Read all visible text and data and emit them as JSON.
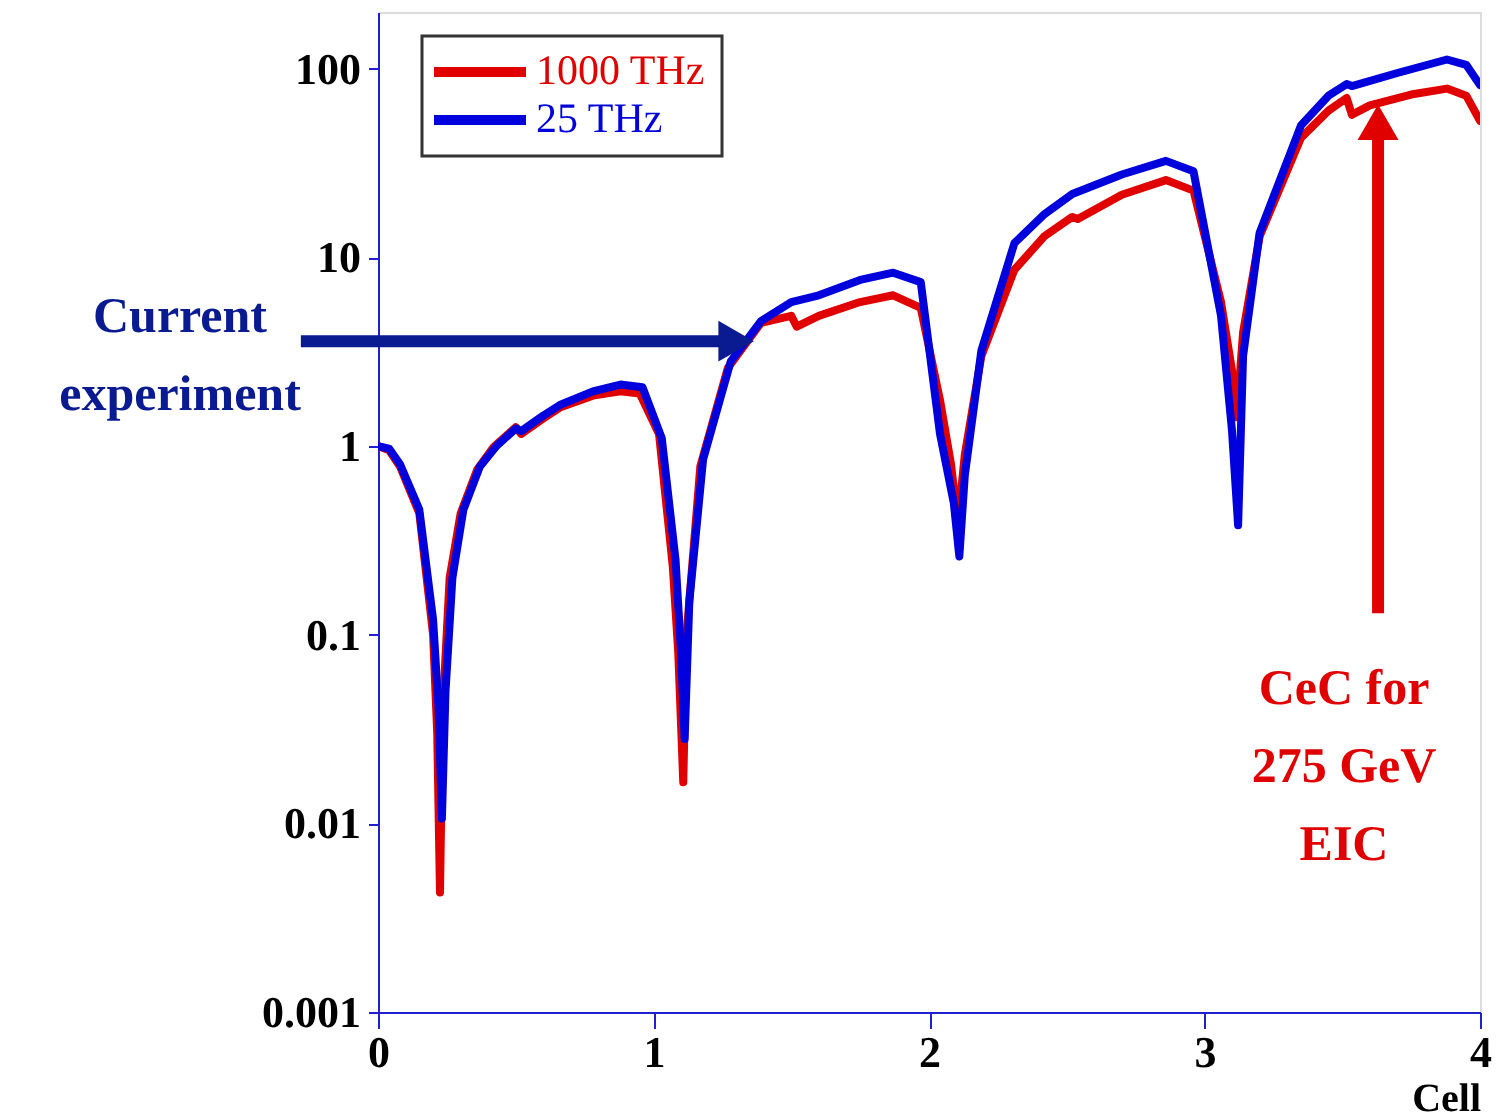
{
  "chart_data": {
    "type": "line",
    "xlabel": "Cell",
    "xlim": [
      0,
      4
    ],
    "xticks": [
      0,
      1,
      2,
      3,
      4
    ],
    "ylim": [
      0.001,
      200
    ],
    "yticks": [
      0.001,
      0.01,
      0.1,
      1,
      10,
      100
    ],
    "log": "y",
    "grid": false,
    "legend": "top left",
    "line_style": "solid",
    "marker": "none",
    "series": [
      {
        "name": "1000 THz",
        "color": "#e00000",
        "x": [
          0,
          0.04,
          0.08,
          0.15,
          0.2,
          0.215,
          0.225,
          0.235,
          0.26,
          0.3,
          0.36,
          0.42,
          0.5,
          0.52,
          0.6,
          0.66,
          0.78,
          0.88,
          0.95,
          1.02,
          1.07,
          1.09,
          1.108,
          1.12,
          1.17,
          1.27,
          1.39,
          1.5,
          1.52,
          1.6,
          1.75,
          1.87,
          1.97,
          2.04,
          2.08,
          2.105,
          2.13,
          2.19,
          2.31,
          2.42,
          2.52,
          2.54,
          2.7,
          2.86,
          2.96,
          3.06,
          3.1,
          3.117,
          3.14,
          3.2,
          3.35,
          3.45,
          3.516,
          3.535,
          3.6,
          3.75,
          3.88,
          3.95,
          4.0
        ],
        "values": [
          1,
          0.95,
          0.78,
          0.44,
          0.1,
          0.03,
          0.0043,
          0.04,
          0.2,
          0.44,
          0.75,
          0.99,
          1.26,
          1.16,
          1.4,
          1.6,
          1.85,
          1.95,
          1.9,
          1.16,
          0.23,
          0.08,
          0.0165,
          0.1,
          0.78,
          2.6,
          4.5,
          4.9,
          4.3,
          4.9,
          5.8,
          6.3,
          5.4,
          1.75,
          0.8,
          0.39,
          0.9,
          3.0,
          8.6,
          13,
          16.4,
          16,
          21.5,
          25.7,
          22.6,
          5.8,
          2.5,
          1.42,
          4,
          12.9,
          43,
          60,
          70,
          57,
          64,
          73,
          78.5,
          72,
          53
        ]
      },
      {
        "name": "25 THz",
        "color": "#0000dd",
        "x": [
          0,
          0.04,
          0.08,
          0.15,
          0.2,
          0.22,
          0.232,
          0.245,
          0.27,
          0.31,
          0.37,
          0.43,
          0.5,
          0.52,
          0.6,
          0.66,
          0.78,
          0.88,
          0.96,
          1.03,
          1.08,
          1.1,
          1.113,
          1.13,
          1.18,
          1.28,
          1.39,
          1.5,
          1.6,
          1.75,
          1.87,
          1.97,
          2.04,
          2.09,
          2.11,
          2.13,
          2.19,
          2.31,
          2.42,
          2.52,
          2.7,
          2.86,
          2.96,
          3.06,
          3.1,
          3.122,
          3.14,
          3.2,
          3.35,
          3.45,
          3.516,
          3.535,
          3.7,
          3.88,
          3.95,
          4.0
        ],
        "values": [
          1,
          0.97,
          0.8,
          0.46,
          0.12,
          0.04,
          0.0106,
          0.05,
          0.2,
          0.46,
          0.78,
          1.0,
          1.24,
          1.2,
          1.45,
          1.65,
          1.95,
          2.12,
          2.05,
          1.1,
          0.25,
          0.08,
          0.028,
          0.15,
          0.85,
          2.8,
          4.6,
          5.8,
          6.3,
          7.6,
          8.3,
          7.4,
          1.16,
          0.5,
          0.26,
          0.7,
          3.2,
          11.9,
          17,
          21.7,
          27.5,
          32.5,
          28.6,
          4.9,
          1.2,
          0.38,
          3,
          13.5,
          50,
          72,
          83,
          81,
          95,
          112,
          105,
          82
        ]
      }
    ],
    "annotations": [
      {
        "text": "Current\nexperiment",
        "x": 1.3,
        "y": 3.6
      },
      {
        "text": "CeC for\n275 GeV\nEIC",
        "x": 3.63,
        "y": 52
      }
    ]
  }
}
